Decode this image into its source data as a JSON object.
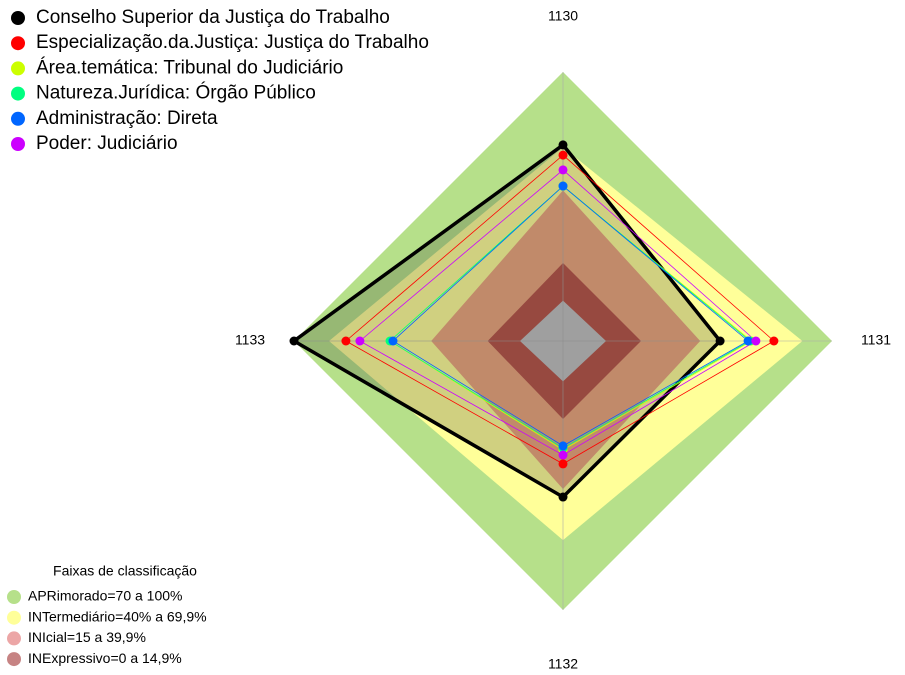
{
  "chart_data": {
    "type": "radar",
    "axes": [
      "1130",
      "1131",
      "1132",
      "1133"
    ],
    "rlim": [
      0,
      100
    ],
    "series": [
      {
        "name": "Conselho Superior da Justiça do Trabalho",
        "color": "#000000",
        "values": [
          72.9,
          58.4,
          58,
          100
        ]
      },
      {
        "name": "Especialização.da.Justiça: Justiça do Trabalho",
        "color": "#ff0000",
        "values": [
          69.1,
          78.4,
          45.7,
          80.7
        ]
      },
      {
        "name": "Área.temática: Tribunal do Judiciário",
        "color": "#ccff00",
        "values": [
          57.6,
          70,
          40.5,
          64.3
        ]
      },
      {
        "name": "Natureza.Jurídica: Órgão Público",
        "color": "#00ff80",
        "values": [
          57.6,
          69.5,
          39.8,
          64.3
        ]
      },
      {
        "name": "Administração: Direta",
        "color": "#0066ff",
        "values": [
          57.6,
          68.8,
          39,
          63.2
        ]
      },
      {
        "name": "Poder: Judiciário",
        "color": "#cc00ff",
        "values": [
          63.6,
          71.7,
          42.4,
          75.5
        ]
      }
    ],
    "bands_title": "Faixas de classificação",
    "bands": [
      {
        "name": "APRimorado=70 a 100%",
        "color": "#b6e08a",
        "values": [
          100,
          100,
          100,
          100
        ]
      },
      {
        "name": "INTermediário=40% a 69,9%",
        "color": "#ffff99",
        "values": [
          72,
          89,
          74,
          87
        ]
      },
      {
        "name": "INIcial=15 a 39,9%",
        "color": "#e06a6a",
        "values": [
          56,
          51,
          55,
          49
        ]
      },
      {
        "name": "INExpressivo=0 a 14,9%",
        "color": "#a03030",
        "values": [
          29,
          29,
          29,
          28
        ]
      },
      {
        "color": "#c0c0c0",
        "values": [
          15,
          16,
          15,
          16
        ]
      }
    ]
  }
}
